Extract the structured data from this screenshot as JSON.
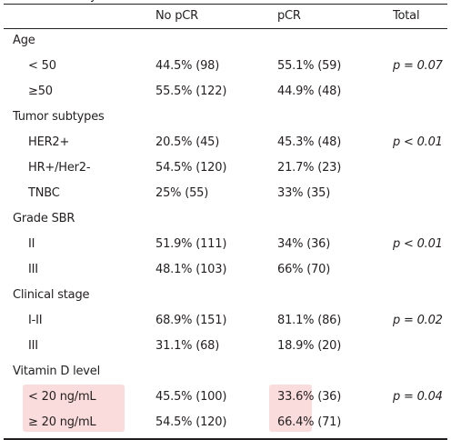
{
  "table": {
    "header_partial": "y",
    "columns": [
      "No pCR",
      "pCR",
      "Total"
    ],
    "sections": [
      {
        "title": "Age",
        "rows": [
          {
            "label": "< 50",
            "no_pcr": "44.5% (98)",
            "pcr": "55.1% (59)",
            "total": "p = 0.07"
          },
          {
            "label": "≥50",
            "no_pcr": "55.5% (122)",
            "pcr": "44.9% (48)",
            "total": ""
          }
        ]
      },
      {
        "title": "Tumor subtypes",
        "rows": [
          {
            "label": "HER2+",
            "no_pcr": "20.5% (45)",
            "pcr": "45.3% (48)",
            "total": "p < 0.01"
          },
          {
            "label": "HR+/Her2-",
            "no_pcr": "54.5% (120)",
            "pcr": "21.7% (23)",
            "total": ""
          },
          {
            "label": "TNBC",
            "no_pcr": "25% (55)",
            "pcr": "33% (35)",
            "total": ""
          }
        ]
      },
      {
        "title": "Grade SBR",
        "rows": [
          {
            "label": "II",
            "no_pcr": "51.9% (111)",
            "pcr": "34% (36)",
            "total": "p < 0.01"
          },
          {
            "label": "III",
            "no_pcr": "48.1% (103)",
            "pcr": "66% (70)",
            "total": ""
          }
        ]
      },
      {
        "title": "Clinical stage",
        "rows": [
          {
            "label": "I-II",
            "no_pcr": "68.9% (151)",
            "pcr": "81.1% (86)",
            "total": "p = 0.02"
          },
          {
            "label": "III",
            "no_pcr": "31.1% (68)",
            "pcr": "18.9% (20)",
            "total": ""
          }
        ]
      },
      {
        "title": "Vitamin D level",
        "rows": [
          {
            "label": "< 20 ng/mL",
            "no_pcr": "45.5% (100)",
            "pcr": "33.6% (36)",
            "total": "p = 0.04"
          },
          {
            "label": "≥ 20 ng/mL",
            "no_pcr": "54.5% (120)",
            "pcr": "66.4% (71)",
            "total": ""
          }
        ]
      }
    ]
  },
  "colors": {
    "highlight": "#fbdcdc",
    "text": "#231f20",
    "rule": "#231f20"
  }
}
